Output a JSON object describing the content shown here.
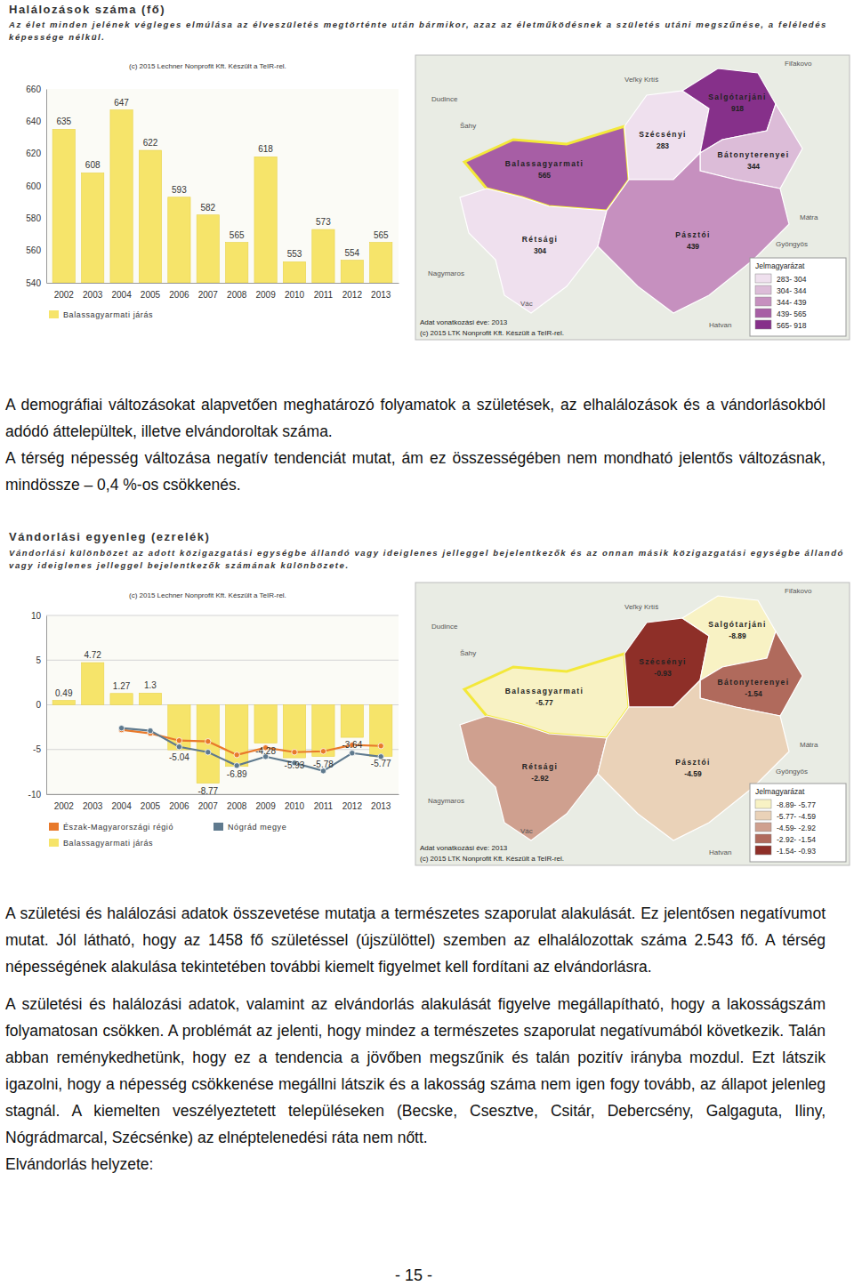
{
  "chart_data": [
    {
      "type": "bar",
      "title": "Halálozások száma (fő)",
      "subtitle": "Az élet minden jelének végleges elmúlása az élveszületés megtörténte után bármikor, azaz az életműködésnek a születés utáni megszűnése, a feléledés képessége nélkül.",
      "source": "(c) 2015 Lechner Nonprofit Kft. Készült a TeIR-rel.",
      "categories": [
        "2002",
        "2003",
        "2004",
        "2005",
        "2006",
        "2007",
        "2008",
        "2009",
        "2010",
        "2011",
        "2012",
        "2013"
      ],
      "series": [
        {
          "name": "Balassagyarmati járás",
          "type": "bar",
          "color": "#f6e46a",
          "data_labels": true,
          "values": [
            635,
            608,
            647,
            622,
            593,
            582,
            565,
            618,
            553,
            573,
            554,
            565
          ]
        }
      ],
      "ylim": [
        540,
        660
      ],
      "yticks": [
        540,
        560,
        580,
        600,
        620,
        640,
        660
      ],
      "grid": false,
      "map": {
        "regions": [
          {
            "name": "Balassagyarmati",
            "value": 565
          },
          {
            "name": "Rétsági",
            "value": 304
          },
          {
            "name": "Szécsényi",
            "value": 283
          },
          {
            "name": "Salgótarjáni",
            "value": 918
          },
          {
            "name": "Bátonyterenyei",
            "value": 344
          },
          {
            "name": "Pásztói",
            "value": 439
          }
        ],
        "breaks": [
          283,
          304,
          344,
          439,
          565,
          918
        ],
        "colors": [
          "#efe0ee",
          "#dcbcd8",
          "#c690bf",
          "#a75ea5",
          "#86308a"
        ],
        "legend_title": "Jelmagyarázat",
        "class_labels": [
          "283- 304",
          "304- 344",
          "344- 439",
          "439- 565",
          "565- 918"
        ],
        "note": "Adat vonatkozási éve: 2013",
        "source": "(c) 2015 LTK Nonprofit Kft. Készült a TeIR-rel.",
        "places": [
          "Fiľakovo",
          "Veľký Krtíš",
          "Dudince",
          "Šahy",
          "Nagymaros",
          "Vác",
          "Mátra",
          "Gyöngyös",
          "Hatvan"
        ]
      }
    },
    {
      "type": "bar",
      "title": "Vándorlási egyenleg (ezrelék)",
      "subtitle": "Vándorlási különbözet az adott közigazgatási egységbe állandó vagy ideiglenes jelleggel bejelentkezők és az onnan másik közigazgatási egységbe állandó vagy ideiglenes jelleggel bejelentkezők számának különbözete.",
      "source": "(c) 2015 Lechner Nonprofit Kft. Készült a TeIR-rel.",
      "categories": [
        "2002",
        "2003",
        "2004",
        "2005",
        "2006",
        "2007",
        "2008",
        "2009",
        "2010",
        "2011",
        "2012",
        "2013"
      ],
      "series": [
        {
          "name": "Balassagyarmati járás",
          "type": "bar",
          "color": "#f6e46a",
          "data_labels": true,
          "values": [
            0.49,
            4.72,
            1.27,
            1.3,
            -5.04,
            -8.77,
            -6.89,
            -4.28,
            -5.93,
            -5.78,
            -3.64,
            -5.77
          ]
        },
        {
          "name": "Észak-Magyarországi régió",
          "type": "line",
          "color": "#e8792b",
          "marker": "circle",
          "values": [
            null,
            null,
            -2.8,
            -3.2,
            -4.0,
            -4.1,
            -5.6,
            -4.8,
            -5.3,
            -5.2,
            -4.5,
            -4.6
          ]
        },
        {
          "name": "Nógrád megye",
          "type": "line",
          "color": "#5f7a8e",
          "marker": "circle",
          "values": [
            null,
            null,
            -2.6,
            -2.9,
            -4.7,
            -5.3,
            -6.8,
            -5.8,
            -6.5,
            -7.4,
            -5.4,
            -5.8
          ]
        }
      ],
      "ylim": [
        -10,
        10
      ],
      "yticks": [
        -10,
        -5,
        0,
        5,
        10
      ],
      "grid": true,
      "map": {
        "regions": [
          {
            "name": "Balassagyarmati",
            "value": -5.77
          },
          {
            "name": "Rétsági",
            "value": -2.92
          },
          {
            "name": "Szécsényi",
            "value": -0.93
          },
          {
            "name": "Salgótarjáni",
            "value": -8.89
          },
          {
            "name": "Bátonyterenyei",
            "value": -1.54
          },
          {
            "name": "Pásztói",
            "value": -4.59
          }
        ],
        "breaks": [
          -8.89,
          -5.77,
          -4.59,
          -2.92,
          -1.54,
          -0.93
        ],
        "colors": [
          "#f8f2c4",
          "#ead2b8",
          "#cfa08f",
          "#b06a5c",
          "#8e2f28"
        ],
        "legend_title": "Jelmagyarázat",
        "class_labels": [
          "-8.89- -5.77",
          "-5.77- -4.59",
          "-4.59- -2.92",
          "-2.92- -1.54",
          "-1.54- -0.93"
        ],
        "note": "Adat vonatkozási éve: 2013",
        "source": "(c) 2015 LTK Nonprofit Kft. Készült a TeIR-rel.",
        "places": [
          "Fiľakovo",
          "Veľký Krtíš",
          "Dudince",
          "Šahy",
          "Nagymaros",
          "Vác",
          "Mátra",
          "Gyöngyös",
          "Hatvan"
        ]
      }
    }
  ],
  "text_1": [
    "A demográfiai változásokat alapvetően meghatározó folyamatok a születések, az elhalálozások és a vándorlásokból adódó áttelepültek, illetve elvándoroltak száma.",
    "A térség népesség változása negatív tendenciát mutat, ám ez összességében nem mondható jelentős változásnak, mindössze – 0,4 %-os csökkenés."
  ],
  "text_2": [
    "A születési és halálozási adatok összevetése mutatja a természetes szaporulat alakulását. Ez jelentősen negatívumot mutat. Jól látható, hogy az 1458 fő születéssel (újszülöttel) szemben az elhalálozottak száma 2.543 fő. A térség népességének alakulása tekintetében további kiemelt figyelmet kell fordítani az elvándorlásra.",
    "A születési és halálozási adatok, valamint az elvándorlás alakulását figyelve megállapítható, hogy a lakosságszám folyamatosan csökken. A problémát az jelenti, hogy mindez a természetes szaporulat negatívumából következik. Talán abban reménykedhetünk, hogy ez a tendencia a jövőben megszűnik és talán pozitív irányba mozdul. Ezt látszik igazolni, hogy a népesség csökkenése megállni látszik és a lakosság száma nem igen fogy tovább, az állapot jelenleg stagnál. A kiemelten veszélyeztetett településeken (Becske, Csesztve, Csitár, Debercsény, Galgaguta, Iliny, Nógrádmarcal, Szécsénke) az elnéptelenedési ráta nem nőtt.",
    "Elvándorlás helyzete:"
  ],
  "page_number": "- 15 -"
}
